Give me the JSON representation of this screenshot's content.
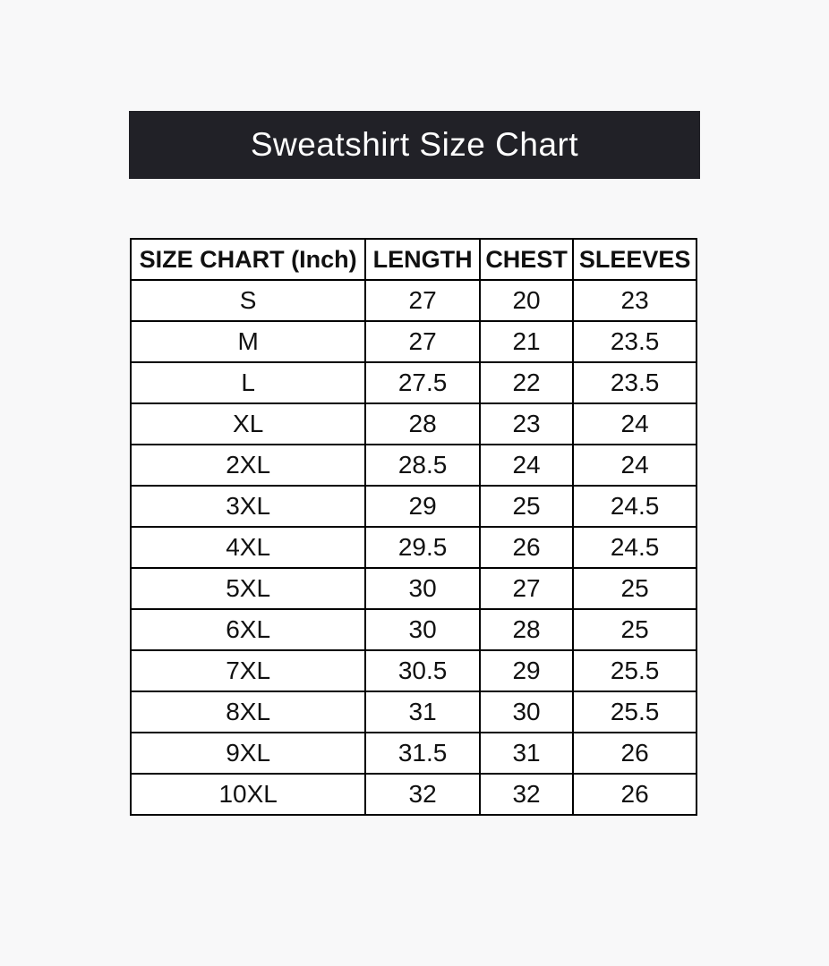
{
  "page": {
    "background_color": "#f8f8f9"
  },
  "banner": {
    "title": "Sweatshirt Size Chart",
    "background_color": "#212127",
    "text_color": "#ffffff"
  },
  "chart_data": {
    "type": "table",
    "title": "Sweatshirt Size Chart",
    "units": "Inch",
    "columns": [
      "SIZE CHART (Inch)",
      "LENGTH",
      "CHEST",
      "SLEEVES"
    ],
    "rows": [
      [
        "S",
        "27",
        "20",
        "23"
      ],
      [
        "M",
        "27",
        "21",
        "23.5"
      ],
      [
        "L",
        "27.5",
        "22",
        "23.5"
      ],
      [
        "XL",
        "28",
        "23",
        "24"
      ],
      [
        "2XL",
        "28.5",
        "24",
        "24"
      ],
      [
        "3XL",
        "29",
        "25",
        "24.5"
      ],
      [
        "4XL",
        "29.5",
        "26",
        "24.5"
      ],
      [
        "5XL",
        "30",
        "27",
        "25"
      ],
      [
        "6XL",
        "30",
        "28",
        "25"
      ],
      [
        "7XL",
        "30.5",
        "29",
        "25.5"
      ],
      [
        "8XL",
        "31",
        "30",
        "25.5"
      ],
      [
        "9XL",
        "31.5",
        "31",
        "26"
      ],
      [
        "10XL",
        "32",
        "32",
        "26"
      ]
    ]
  }
}
